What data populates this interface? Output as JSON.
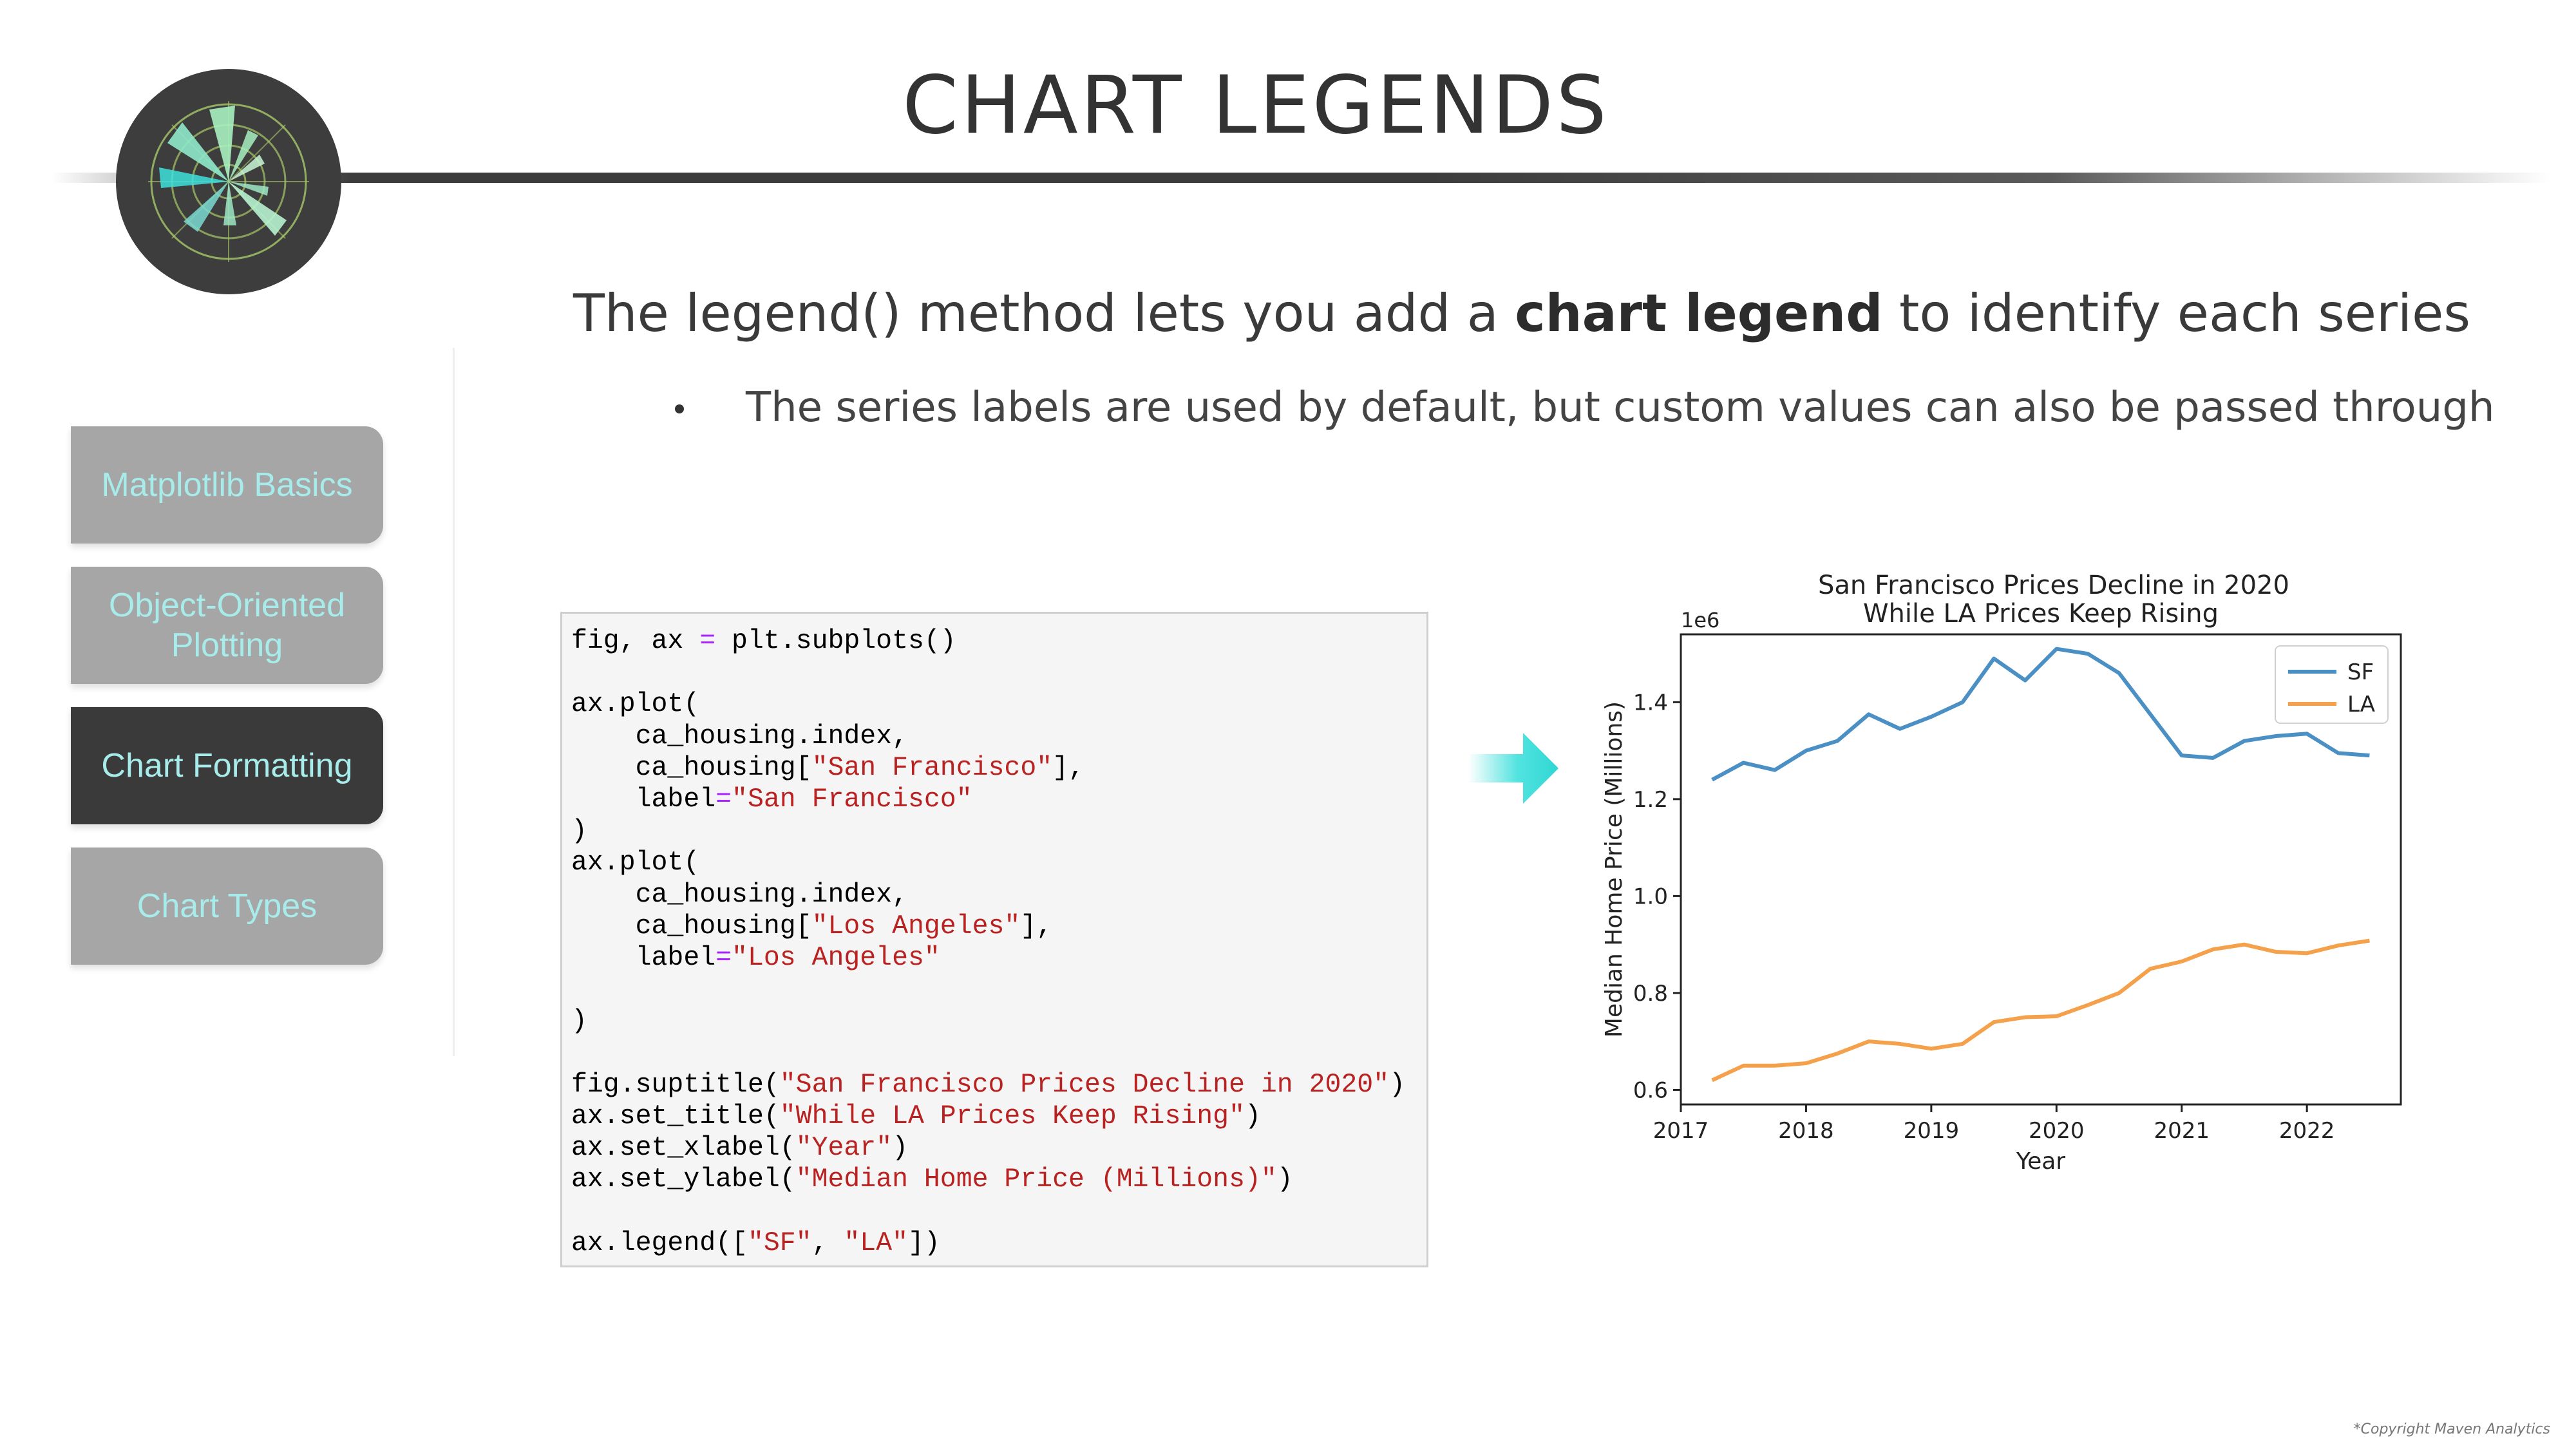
{
  "page": {
    "title": "CHART LEGENDS",
    "copyright": "*Copyright Maven Analytics"
  },
  "sidebar": {
    "items": [
      {
        "label": "Matplotlib Basics",
        "active": false
      },
      {
        "label": "Object-Oriented Plotting",
        "active": false
      },
      {
        "label": "Chart Formatting",
        "active": true
      },
      {
        "label": "Chart Types",
        "active": false
      }
    ]
  },
  "content": {
    "headline_pre": "The legend() method lets you add a ",
    "headline_bold": "chart legend",
    "headline_post": " to identify each series",
    "bullet": "The series labels are used by default, but custom values can also be passed through"
  },
  "code": {
    "lines": [
      "fig, ax = plt.subplots()",
      "",
      "ax.plot(",
      "    ca_housing.index,",
      "    ca_housing[\"San Francisco\"],",
      "    label=\"San Francisco\"",
      ")",
      "ax.plot(",
      "    ca_housing.index,",
      "    ca_housing[\"Los Angeles\"],",
      "    label=\"Los Angeles\"",
      "",
      ")",
      "",
      "fig.suptitle(\"San Francisco Prices Decline in 2020\")",
      "ax.set_title(\"While LA Prices Keep Rising\")",
      "ax.set_xlabel(\"Year\")",
      "ax.set_ylabel(\"Median Home Price (Millions)\")",
      "",
      "ax.legend([\"SF\", \"LA\"])"
    ]
  },
  "colors": {
    "accent_teal": "#3ee0dc",
    "sf_line": "#4a90c4",
    "la_line": "#f5a04a",
    "code_string": "#ba2121",
    "code_operator": "#aa22ff"
  },
  "icons": {
    "arrow": "right-arrow-icon",
    "logo": "polar-chart-logo-icon"
  },
  "chart_data": {
    "type": "line",
    "suptitle": "San Francisco Prices Decline in 2020",
    "title": "While LA Prices Keep Rising",
    "xlabel": "Year",
    "ylabel": "Median Home Price (Millions)",
    "offset_text": "1e6",
    "xlim": [
      2017,
      2022.75
    ],
    "ylim": [
      0.57,
      1.54
    ],
    "xticks": [
      2017,
      2018,
      2019,
      2020,
      2021,
      2022
    ],
    "yticks": [
      0.6,
      0.8,
      1.0,
      1.2,
      1.4
    ],
    "ytick_labels": [
      "0.6",
      "0.8",
      "1.0",
      "1.2",
      "1.4"
    ],
    "legend_position": "top-right",
    "x": [
      2017.25,
      2017.5,
      2017.75,
      2018.0,
      2018.25,
      2018.5,
      2018.75,
      2019.0,
      2019.25,
      2019.5,
      2019.75,
      2020.0,
      2020.25,
      2020.5,
      2020.75,
      2021.0,
      2021.25,
      2021.5,
      2021.75,
      2022.0,
      2022.25,
      2022.5
    ],
    "series": [
      {
        "name": "SF",
        "values": [
          1.24,
          1.275,
          1.26,
          1.3,
          1.32,
          1.375,
          1.345,
          1.37,
          1.4,
          1.49,
          1.445,
          1.51,
          1.5,
          1.46,
          1.375,
          1.29,
          1.285,
          1.32,
          1.33,
          1.335,
          1.295,
          1.29
        ]
      },
      {
        "name": "LA",
        "values": [
          0.62,
          0.65,
          0.65,
          0.655,
          0.675,
          0.7,
          0.695,
          0.685,
          0.695,
          0.74,
          0.75,
          0.752,
          0.775,
          0.8,
          0.85,
          0.865,
          0.89,
          0.9,
          0.885,
          0.882,
          0.898,
          0.908
        ]
      }
    ]
  }
}
